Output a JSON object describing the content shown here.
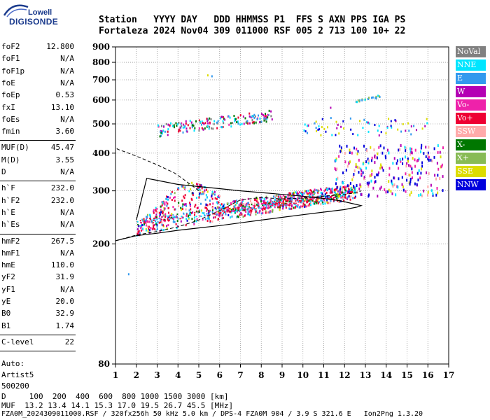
{
  "logo": {
    "top": "Lowell",
    "bottom": "DIGISONDE"
  },
  "header": {
    "row1": "Station   YYYY DAY   DDD HHMMSS P1  FFS S AXN PPS IGA PS",
    "row2": "Fortaleza 2024 Nov04 309 011000 RSF 005 2 713 100 10+ 22"
  },
  "params": {
    "group1": [
      {
        "k": "foF2",
        "v": "12.800"
      },
      {
        "k": "foF1",
        "v": "N/A"
      },
      {
        "k": "foF1p",
        "v": "N/A"
      },
      {
        "k": "foE",
        "v": "N/A"
      },
      {
        "k": "foEp",
        "v": "0.53"
      },
      {
        "k": "fxI",
        "v": "13.10"
      },
      {
        "k": "foEs",
        "v": "N/A"
      },
      {
        "k": "fmin",
        "v": "3.60"
      }
    ],
    "group2": [
      {
        "k": "MUF(D)",
        "v": "45.47"
      },
      {
        "k": "M(D)",
        "v": "3.55"
      },
      {
        "k": "D",
        "v": "N/A"
      }
    ],
    "group3": [
      {
        "k": "h`F",
        "v": "232.0"
      },
      {
        "k": "h`F2",
        "v": "232.0"
      },
      {
        "k": "h`E",
        "v": "N/A"
      },
      {
        "k": "h`Es",
        "v": "N/A"
      }
    ],
    "group4": [
      {
        "k": "hmF2",
        "v": "267.5"
      },
      {
        "k": "hmF1",
        "v": "N/A"
      },
      {
        "k": "hmE",
        "v": "110.0"
      },
      {
        "k": "yF2",
        "v": "31.9"
      },
      {
        "k": "yF1",
        "v": "N/A"
      },
      {
        "k": "yE",
        "v": "20.0"
      },
      {
        "k": "B0",
        "v": "32.9"
      },
      {
        "k": "B1",
        "v": "1.74"
      }
    ],
    "group5": [
      {
        "k": "C-level",
        "v": "22"
      }
    ],
    "auto": [
      "Auto:",
      "Artist5",
      "500200"
    ]
  },
  "legend": [
    {
      "label": "NoVal",
      "color": "#808080"
    },
    {
      "label": "NNE",
      "color": "#00e5ff"
    },
    {
      "label": "E",
      "color": "#3399ee"
    },
    {
      "label": "W",
      "color": "#b400b4"
    },
    {
      "label": "Vo-",
      "color": "#ee22aa"
    },
    {
      "label": "Vo+",
      "color": "#ee0033"
    },
    {
      "label": "SSW",
      "color": "#ffaaaa"
    },
    {
      "label": "X-",
      "color": "#007700"
    },
    {
      "label": "X+",
      "color": "#88bb55"
    },
    {
      "label": "SSE",
      "color": "#dddd00"
    },
    {
      "label": "NNW",
      "color": "#0000dd"
    }
  ],
  "footer": {
    "line1": "D     100  200  400  600  800 1000 1500 3000 [km]",
    "line2": "MUF  13.2 13.4 14.1 15.3 17.0 19.5 26.7 45.5 [MHz]",
    "line3": "FZA0M_2024309011000.RSF / 320fx256h 50 kHz 5.0 km / DPS-4 FZA0M 904 / 3.9 S 321.6 E   Ion2Png 1.3.20"
  },
  "chart_data": {
    "type": "scatter",
    "x_ticks": [
      1,
      2,
      3,
      4,
      5,
      6,
      7,
      8,
      9,
      10,
      11,
      12,
      13,
      14,
      15,
      16,
      17
    ],
    "y_ticks": [
      80,
      200,
      300,
      400,
      500,
      600,
      700,
      800,
      900
    ],
    "xlim": [
      1,
      17
    ],
    "ylim": [
      80,
      900
    ],
    "y_scale": "log",
    "grid": true,
    "profile_curve": {
      "freq": [
        5.0,
        4.6,
        4.2,
        3.8,
        3.4,
        3.0,
        2.6,
        2.2,
        1.8,
        1.4,
        1.1,
        1.0
      ],
      "height": [
        300,
        315,
        330,
        345,
        355,
        366,
        376,
        386,
        396,
        405,
        412,
        420
      ]
    },
    "ionogram_trace": {
      "freq": [
        1.0,
        2.0,
        3.0,
        4.0,
        5.0,
        6.0,
        7.0,
        8.0,
        9.0,
        10.0,
        11.0,
        12.0,
        12.6,
        12.8,
        12.4,
        11.8,
        11.0,
        10.0,
        9.0,
        8.0,
        7.0,
        6.0,
        5.0,
        4.0,
        3.0,
        2.5,
        2.0
      ],
      "height": [
        205,
        213,
        217,
        222,
        226,
        230,
        235,
        240,
        245,
        250,
        255,
        260,
        265,
        268,
        272,
        278,
        283,
        288,
        292,
        296,
        300,
        305,
        310,
        315,
        325,
        330,
        240
      ]
    }
  }
}
